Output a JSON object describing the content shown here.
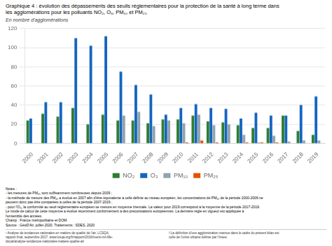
{
  "chart_data": {
    "type": "bar",
    "title": [
      "Graphique 4 : évolution des dépassements des seuils réglementaires pour la protection de la santé à long terme dans",
      "les agglomérations pour les polluants NO₂, O₃, PM₁₀ et PM₂₅"
    ],
    "subtitle": "En nombre d'agglomérations",
    "categories": [
      2000,
      2001,
      2002,
      2003,
      2004,
      2005,
      2006,
      2007,
      2008,
      2009,
      2010,
      2011,
      2012,
      2013,
      2014,
      2015,
      2016,
      2017,
      2018,
      2019
    ],
    "series": [
      {
        "name": "NO₂",
        "color": "#2e7d32",
        "values": [
          24,
          31,
          28,
          37,
          20,
          30,
          24,
          24,
          21,
          25,
          25,
          29,
          23,
          22,
          19,
          16,
          16,
          29,
          13,
          9
        ]
      },
      {
        "name": "O₃",
        "color": "#1565c0",
        "values": [
          26,
          43,
          43,
          110,
          102,
          112,
          75,
          61,
          51,
          30,
          37,
          41,
          37,
          36,
          26,
          32,
          29,
          29,
          40,
          49
        ]
      },
      {
        "name": "PM₁₀",
        "color": "#90a4ae",
        "values": [
          0,
          0,
          0,
          0,
          0,
          0,
          29,
          33,
          18,
          24,
          21,
          30,
          19,
          20,
          9,
          1,
          8,
          2,
          3,
          3
        ]
      },
      {
        "name": "PM₂₅",
        "color": "#e65100",
        "values": [
          0,
          0,
          0,
          0,
          0,
          0,
          0,
          0,
          0,
          0,
          1,
          3,
          1,
          0,
          1,
          1,
          1,
          0,
          0,
          0
        ]
      }
    ],
    "ylim": [
      0,
      120
    ],
    "yticks": [
      0,
      20,
      40,
      60,
      80,
      100,
      120
    ],
    "grid": true,
    "legend": "bottom",
    "annotations": [
      "Notes :",
      "- les mesures de PM₂₅ sont suffisamment nombreuses depuis 2009 ;",
      "- la méthode de mesure des PM₁₀ a évolué en 2007 afin d'être équivalente à celle définie au niveau européen, les concentrations de PM₁₀ de la période 2000-2006 ne",
      "peuvent donc pas être comparées à celles de la période 2007-2019 ;",
      "- pour l'O₃, la conformité au seuil réglementaire européen se mesure en moyenne triennale. La valeur pour 2019 correspond à la moyenne de la période 2017-2019.",
      "Le mode de calcul de cette moyenne a évolué récemment conformément à des préconisations européennes. La dernière règle en vigueur est appliquée à",
      "l'ensemble des années.",
      "Champ : France métropolitaine et DOM.",
      "Source : GéoD'Air, juillet 2020. Traitements : SDES, 2020"
    ],
    "footnotes": [
      "¹ Analyse de tendances nationales en matière de qualité de l'air, LCSQA,\nrapport final, septembre 2017. www.lcsqa.org/fr/rapport/2016/ineris-imt-lille-\ndouai/analyse-tendances-nationales-matiere-qualite-air",
      "² La définition d'une agglomération retenue dans le cadre du présent bilan est\ncelle de l'unité urbaine définie par l'Insee."
    ]
  }
}
